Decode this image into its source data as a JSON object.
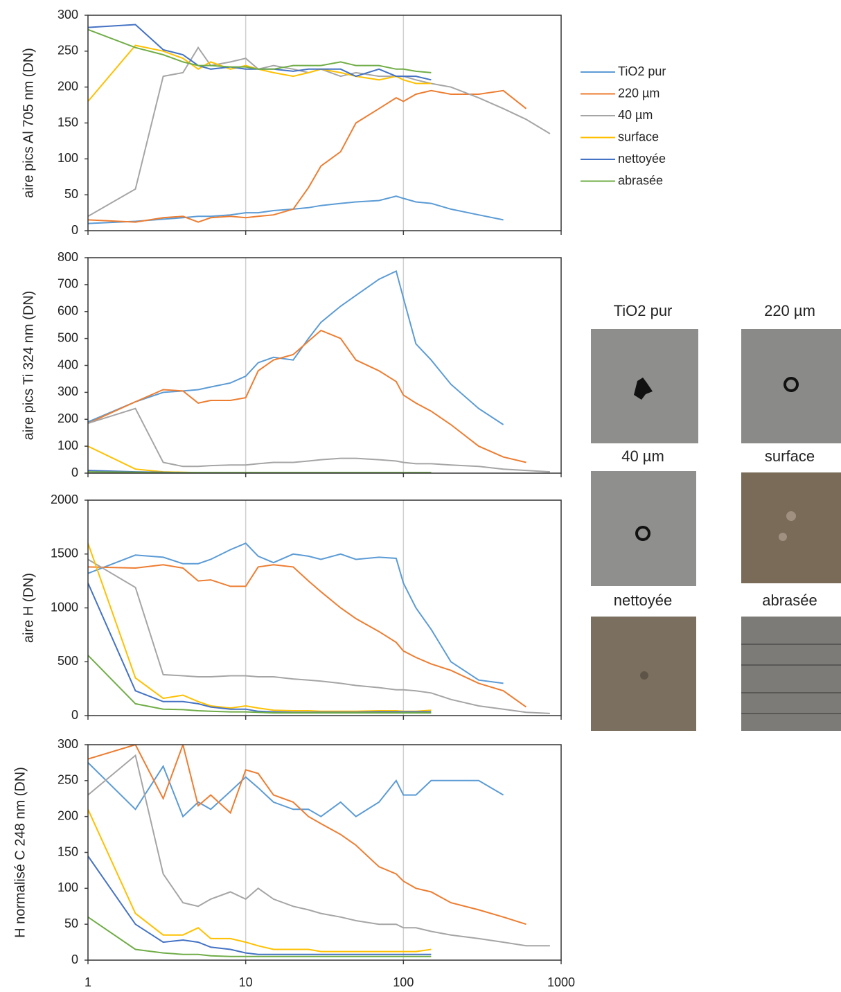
{
  "chart_data": [
    {
      "type": "line",
      "ylabel": "aire pics Al 705 nm (DN)",
      "xscale": "log",
      "xlim": [
        1,
        1000
      ],
      "xticks": [
        1,
        10,
        100,
        1000
      ],
      "show_xtick_labels": false,
      "ylim": [
        0,
        300
      ],
      "yticks": [
        0,
        50,
        100,
        150,
        200,
        250,
        300
      ],
      "grid": true,
      "legend": "right",
      "x": [
        1,
        2,
        3,
        4,
        5,
        6,
        8,
        10,
        12,
        15,
        20,
        25,
        30,
        40,
        50,
        70,
        90,
        100,
        120,
        150,
        200,
        300,
        430,
        600,
        850
      ],
      "series": [
        {
          "name": "TiO2 pur",
          "color": "#5b9bd5",
          "values": [
            10,
            13,
            16,
            18,
            20,
            20,
            22,
            25,
            25,
            28,
            30,
            32,
            35,
            38,
            40,
            42,
            48,
            45,
            40,
            38,
            30,
            22,
            15,
            null,
            null
          ]
        },
        {
          "name": "220 µm",
          "color": "#ed7d31",
          "values": [
            15,
            12,
            18,
            20,
            12,
            18,
            20,
            18,
            20,
            22,
            30,
            60,
            90,
            110,
            150,
            170,
            185,
            180,
            190,
            195,
            190,
            190,
            195,
            170,
            null
          ]
        },
        {
          "name": "40 µm",
          "color": "#a5a5a5",
          "values": [
            20,
            58,
            215,
            220,
            255,
            230,
            235,
            240,
            225,
            230,
            225,
            220,
            225,
            215,
            220,
            215,
            215,
            215,
            210,
            205,
            200,
            185,
            170,
            155,
            135
          ]
        },
        {
          "name": "surface",
          "color": "#ffc000",
          "values": [
            180,
            258,
            250,
            240,
            225,
            235,
            225,
            230,
            225,
            220,
            215,
            220,
            225,
            220,
            215,
            210,
            215,
            210,
            205,
            205,
            null,
            null,
            null,
            null,
            null
          ]
        },
        {
          "name": "nettoyée",
          "color": "#4472c4",
          "values": [
            283,
            287,
            252,
            245,
            230,
            225,
            228,
            225,
            225,
            225,
            222,
            225,
            225,
            225,
            215,
            225,
            215,
            215,
            215,
            210,
            null,
            null,
            null,
            null,
            null
          ]
        },
        {
          "name": "abrasée",
          "color": "#70ad47",
          "values": [
            280,
            255,
            245,
            235,
            230,
            230,
            228,
            228,
            225,
            225,
            230,
            230,
            230,
            235,
            230,
            230,
            225,
            225,
            222,
            220,
            null,
            null,
            null,
            null,
            null
          ]
        }
      ]
    },
    {
      "type": "line",
      "ylabel": "aire pics Ti 324 nm (DN)",
      "xscale": "log",
      "xlim": [
        1,
        1000
      ],
      "xticks": [
        1,
        10,
        100,
        1000
      ],
      "show_xtick_labels": false,
      "ylim": [
        0,
        800
      ],
      "yticks": [
        0,
        100,
        200,
        300,
        400,
        500,
        600,
        700,
        800
      ],
      "grid": true,
      "x": [
        1,
        2,
        3,
        4,
        5,
        6,
        8,
        10,
        12,
        15,
        20,
        25,
        30,
        40,
        50,
        70,
        90,
        100,
        120,
        150,
        200,
        300,
        430,
        600,
        850
      ],
      "series": [
        {
          "color": "#5b9bd5",
          "values": [
            190,
            265,
            300,
            305,
            310,
            320,
            335,
            360,
            410,
            430,
            420,
            500,
            560,
            620,
            660,
            720,
            750,
            650,
            480,
            420,
            330,
            240,
            180,
            null,
            null
          ]
        },
        {
          "color": "#ed7d31",
          "values": [
            185,
            265,
            310,
            305,
            260,
            270,
            270,
            280,
            380,
            420,
            440,
            490,
            530,
            500,
            420,
            380,
            340,
            290,
            260,
            230,
            180,
            100,
            60,
            40,
            null
          ]
        },
        {
          "color": "#a5a5a5",
          "values": [
            185,
            240,
            40,
            25,
            25,
            28,
            30,
            30,
            35,
            40,
            40,
            45,
            50,
            55,
            55,
            50,
            45,
            40,
            35,
            35,
            30,
            25,
            15,
            10,
            5
          ]
        },
        {
          "color": "#ffc000",
          "values": [
            100,
            15,
            5,
            3,
            2,
            2,
            2,
            2,
            2,
            2,
            2,
            2,
            2,
            2,
            2,
            2,
            2,
            2,
            2,
            2,
            null,
            null,
            null,
            null,
            null
          ]
        },
        {
          "color": "#4472c4",
          "values": [
            10,
            5,
            3,
            2,
            2,
            2,
            2,
            2,
            2,
            2,
            2,
            2,
            2,
            2,
            2,
            2,
            2,
            2,
            2,
            2,
            null,
            null,
            null,
            null,
            null
          ]
        },
        {
          "color": "#70ad47",
          "values": [
            5,
            3,
            2,
            2,
            2,
            2,
            2,
            2,
            2,
            2,
            2,
            2,
            2,
            2,
            2,
            2,
            2,
            2,
            2,
            2,
            null,
            null,
            null,
            null,
            null
          ]
        }
      ]
    },
    {
      "type": "line",
      "ylabel": "aire H (DN)",
      "xscale": "log",
      "xlim": [
        1,
        1000
      ],
      "xticks": [
        1,
        10,
        100,
        1000
      ],
      "show_xtick_labels": false,
      "ylim": [
        0,
        2000
      ],
      "yticks": [
        0,
        500,
        1000,
        1500,
        2000
      ],
      "grid": true,
      "x": [
        1,
        2,
        3,
        4,
        5,
        6,
        8,
        10,
        12,
        15,
        20,
        25,
        30,
        40,
        50,
        70,
        90,
        100,
        120,
        150,
        200,
        300,
        430,
        600,
        850
      ],
      "series": [
        {
          "color": "#5b9bd5",
          "values": [
            1320,
            1490,
            1470,
            1410,
            1410,
            1450,
            1540,
            1600,
            1480,
            1420,
            1500,
            1480,
            1450,
            1500,
            1450,
            1470,
            1460,
            1230,
            1000,
            800,
            500,
            330,
            300,
            null,
            null
          ]
        },
        {
          "color": "#ed7d31",
          "values": [
            1380,
            1370,
            1400,
            1370,
            1250,
            1260,
            1200,
            1200,
            1380,
            1400,
            1380,
            1250,
            1150,
            1000,
            900,
            780,
            680,
            600,
            540,
            480,
            420,
            300,
            230,
            80,
            null
          ]
        },
        {
          "color": "#a5a5a5",
          "values": [
            1450,
            1190,
            380,
            370,
            360,
            360,
            370,
            370,
            360,
            360,
            340,
            330,
            320,
            300,
            280,
            260,
            240,
            240,
            230,
            210,
            150,
            90,
            60,
            30,
            20
          ]
        },
        {
          "color": "#ffc000",
          "values": [
            1600,
            350,
            160,
            190,
            130,
            90,
            70,
            90,
            70,
            50,
            45,
            45,
            40,
            40,
            40,
            45,
            45,
            40,
            40,
            50,
            null,
            null,
            null,
            null,
            null
          ]
        },
        {
          "color": "#4472c4",
          "values": [
            1230,
            230,
            130,
            130,
            110,
            80,
            60,
            60,
            40,
            35,
            30,
            30,
            30,
            30,
            30,
            35,
            35,
            35,
            35,
            35,
            null,
            null,
            null,
            null,
            null
          ]
        },
        {
          "color": "#70ad47",
          "values": [
            560,
            110,
            60,
            55,
            45,
            40,
            35,
            35,
            30,
            25,
            25,
            25,
            25,
            25,
            25,
            25,
            25,
            25,
            25,
            25,
            null,
            null,
            null,
            null,
            null
          ]
        }
      ]
    },
    {
      "type": "line",
      "ylabel": "H normalisé C 248 nm (DN)",
      "xscale": "log",
      "xlim": [
        1,
        1000
      ],
      "xticks": [
        1,
        10,
        100,
        1000
      ],
      "show_xtick_labels": true,
      "ylim": [
        0,
        300
      ],
      "yticks": [
        0,
        50,
        100,
        150,
        200,
        250,
        300
      ],
      "grid": true,
      "x": [
        1,
        2,
        3,
        4,
        5,
        6,
        8,
        10,
        12,
        15,
        20,
        25,
        30,
        40,
        50,
        70,
        90,
        100,
        120,
        150,
        200,
        300,
        430,
        600,
        850
      ],
      "series": [
        {
          "color": "#5b9bd5",
          "values": [
            275,
            210,
            270,
            200,
            220,
            210,
            235,
            255,
            240,
            220,
            210,
            210,
            200,
            220,
            200,
            220,
            250,
            230,
            230,
            250,
            250,
            250,
            230,
            null,
            null
          ]
        },
        {
          "color": "#ed7d31",
          "values": [
            280,
            300,
            225,
            300,
            215,
            230,
            205,
            265,
            260,
            230,
            220,
            200,
            190,
            175,
            160,
            130,
            120,
            110,
            100,
            95,
            80,
            70,
            60,
            50,
            null
          ]
        },
        {
          "color": "#a5a5a5",
          "values": [
            230,
            285,
            120,
            80,
            75,
            85,
            95,
            85,
            100,
            85,
            75,
            70,
            65,
            60,
            55,
            50,
            50,
            45,
            45,
            40,
            35,
            30,
            25,
            20,
            20
          ]
        },
        {
          "color": "#ffc000",
          "values": [
            210,
            65,
            35,
            35,
            45,
            30,
            30,
            25,
            20,
            15,
            15,
            15,
            12,
            12,
            12,
            12,
            12,
            12,
            12,
            15,
            null,
            null,
            null,
            null,
            null
          ]
        },
        {
          "color": "#4472c4",
          "values": [
            145,
            50,
            25,
            28,
            25,
            18,
            15,
            10,
            8,
            8,
            8,
            8,
            8,
            8,
            8,
            8,
            8,
            8,
            8,
            8,
            null,
            null,
            null,
            null,
            null
          ]
        },
        {
          "color": "#70ad47",
          "values": [
            60,
            15,
            10,
            8,
            8,
            6,
            5,
            5,
            5,
            5,
            5,
            5,
            5,
            5,
            5,
            5,
            5,
            5,
            5,
            5,
            null,
            null,
            null,
            null,
            null
          ]
        }
      ]
    }
  ],
  "photos": {
    "labels": [
      "TiO2 pur",
      "220 µm",
      "40 µm",
      "surface",
      "nettoyée",
      "abrasée"
    ]
  }
}
